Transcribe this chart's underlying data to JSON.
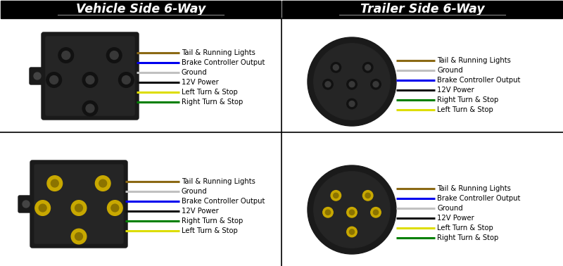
{
  "bg_color": "#ffffff",
  "header_bg": "#000000",
  "header_text_color": "#ffffff",
  "title_left": "Vehicle Side 6-Way",
  "title_right": "Trailer Side 6-Way",
  "divider_color": "#000000",
  "wire_labels_top_left": [
    {
      "label": "Tail & Running Lights",
      "color": "#8B6914"
    },
    {
      "label": "Brake Controller Output",
      "color": "#0000EE"
    },
    {
      "label": "Ground",
      "color": "#C0C0C0"
    },
    {
      "label": "12V Power",
      "color": "#111111"
    },
    {
      "label": "Left Turn & Stop",
      "color": "#DDDD00"
    },
    {
      "label": "Right Turn & Stop",
      "color": "#008000"
    }
  ],
  "wire_labels_top_right": [
    {
      "label": "Tail & Running Lights",
      "color": "#8B6914"
    },
    {
      "label": "Ground",
      "color": "#C0C0C0"
    },
    {
      "label": "Brake Controller Output",
      "color": "#0000EE"
    },
    {
      "label": "12V Power",
      "color": "#111111"
    },
    {
      "label": "Right Turn & Stop",
      "color": "#008000"
    },
    {
      "label": "Left Turn & Stop",
      "color": "#DDDD00"
    }
  ],
  "wire_labels_bottom_left": [
    {
      "label": "Tail & Running Lights",
      "color": "#8B6914"
    },
    {
      "label": "Ground",
      "color": "#C0C0C0"
    },
    {
      "label": "Brake Controller Output",
      "color": "#0000EE"
    },
    {
      "label": "12V Power",
      "color": "#111111"
    },
    {
      "label": "Right Turn & Stop",
      "color": "#008000"
    },
    {
      "label": "Left Turn & Stop",
      "color": "#DDDD00"
    }
  ],
  "wire_labels_bottom_right": [
    {
      "label": "Tail & Running Lights",
      "color": "#8B6914"
    },
    {
      "label": "Brake Controller Output",
      "color": "#0000EE"
    },
    {
      "label": "Ground",
      "color": "#C0C0C0"
    },
    {
      "label": "12V Power",
      "color": "#111111"
    },
    {
      "label": "Left Turn & Stop",
      "color": "#DDDD00"
    },
    {
      "label": "Right Turn & Stop",
      "color": "#008000"
    }
  ],
  "connector_dark": "#1a1a1a",
  "connector_medium": "#252525",
  "connector_pin_gold": "#c8a800",
  "connector_pin_dark": "#8B7300",
  "label_text_color": "#000000",
  "label_font_size": 7.2,
  "title_font_size": 12.5
}
